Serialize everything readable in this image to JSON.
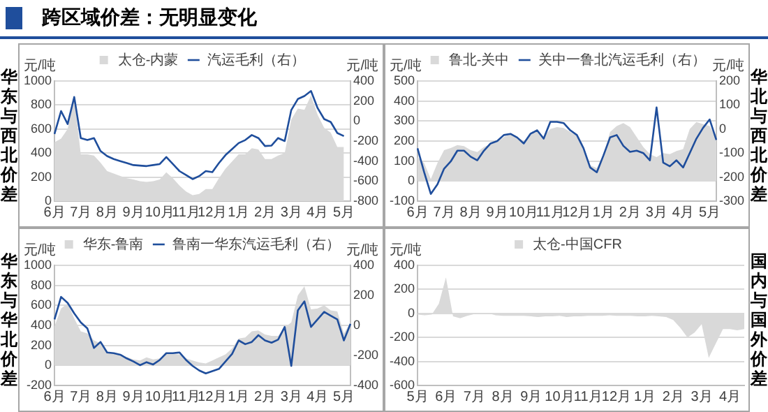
{
  "chart_data": [
    {
      "type": "line",
      "title": "华东与西北价差",
      "annotations": [
        "跨区域价差：无明显变化"
      ],
      "ylabel": "元/吨",
      "y2label": "元/吨",
      "legend": "top",
      "grid": "y",
      "categories": [
        "6月",
        null,
        null,
        null,
        "7月",
        null,
        null,
        null,
        "8月",
        null,
        null,
        null,
        "9月",
        null,
        null,
        null,
        "10月",
        null,
        null,
        null,
        "11月",
        null,
        null,
        null,
        "12月",
        null,
        null,
        null,
        "1月",
        null,
        null,
        null,
        "2月",
        null,
        null,
        null,
        "3月",
        null,
        null,
        null,
        "4月",
        null,
        null,
        null,
        "5月",
        null
      ],
      "ylim": [
        0,
        1000
      ],
      "yticks": [
        0,
        200,
        400,
        600,
        800,
        1000
      ],
      "y2lim": [
        -800,
        400
      ],
      "y2ticks": [
        -800,
        -600,
        -400,
        -200,
        0,
        200,
        400
      ],
      "series": [
        {
          "name": "太仓-内蒙",
          "type": "area",
          "color": "#d9d9d9",
          "values": [
            490,
            520,
            600,
            860,
            390,
            390,
            380,
            320,
            250,
            230,
            210,
            190,
            180,
            165,
            160,
            165,
            180,
            240,
            190,
            130,
            80,
            50,
            60,
            100,
            100,
            190,
            270,
            330,
            390,
            390,
            440,
            430,
            350,
            350,
            380,
            400,
            680,
            770,
            760,
            880,
            720,
            610,
            570,
            450,
            450,
            null
          ]
        },
        {
          "name": "汽运毛利（右）",
          "axis": "y2",
          "color": "#1f4e9c",
          "values": [
            -130,
            100,
            -30,
            240,
            -170,
            -190,
            -170,
            -300,
            -350,
            -380,
            -400,
            -420,
            -440,
            -445,
            -450,
            -440,
            -430,
            -360,
            -430,
            -500,
            -540,
            -580,
            -550,
            -500,
            -510,
            -420,
            -340,
            -280,
            -220,
            -190,
            -140,
            -170,
            -250,
            -245,
            -170,
            -200,
            110,
            220,
            250,
            300,
            130,
            20,
            -10,
            -120,
            -150,
            null
          ]
        }
      ]
    },
    {
      "type": "line",
      "title": "华北与西北价差",
      "ylabel": "元/吨",
      "y2label": "元/吨",
      "legend": "top",
      "grid": "y",
      "categories": [
        "6月",
        null,
        null,
        null,
        "7月",
        null,
        null,
        null,
        "8月",
        null,
        null,
        null,
        "9月",
        null,
        null,
        null,
        "10月",
        null,
        null,
        null,
        "11月",
        null,
        null,
        null,
        "12月",
        null,
        null,
        null,
        "1月",
        null,
        null,
        null,
        "2月",
        null,
        null,
        null,
        "3月",
        null,
        null,
        null,
        "4月",
        null,
        null,
        null,
        "5月",
        null
      ],
      "ylim": [
        -100,
        500
      ],
      "yticks": [
        -100,
        0,
        100,
        200,
        300,
        400,
        500
      ],
      "y2lim": [
        -300,
        200
      ],
      "y2ticks": [
        -300,
        -200,
        -100,
        0,
        100,
        200
      ],
      "series": [
        {
          "name": "鲁北-关中",
          "type": "area",
          "color": "#d9d9d9",
          "values": [
            120,
            90,
            10,
            90,
            155,
            165,
            180,
            175,
            155,
            145,
            170,
            185,
            195,
            220,
            235,
            220,
            200,
            230,
            260,
            220,
            260,
            270,
            265,
            245,
            225,
            150,
            80,
            65,
            130,
            245,
            275,
            290,
            270,
            220,
            170,
            135,
            120,
            140,
            135,
            150,
            160,
            260,
            295,
            285,
            275,
            215
          ]
        },
        {
          "name": "关中一鲁北汽运毛利（右）",
          "axis": "y2",
          "color": "#1f4e9c",
          "values": [
            -80,
            -180,
            -270,
            -230,
            -165,
            -135,
            -90,
            -90,
            -115,
            -130,
            -90,
            -60,
            -50,
            -25,
            -20,
            -35,
            -60,
            -20,
            -5,
            -40,
            30,
            30,
            25,
            -5,
            -25,
            -80,
            -160,
            -180,
            -110,
            -35,
            -25,
            -70,
            -95,
            -90,
            -100,
            -130,
            90,
            -140,
            -155,
            -130,
            -160,
            -100,
            -40,
            5,
            40,
            -45
          ]
        }
      ]
    },
    {
      "type": "line",
      "title": "华东与华北价差",
      "ylabel": "元/吨",
      "y2label": "元/吨",
      "legend": "top",
      "grid": "y",
      "categories": [
        "6月",
        null,
        null,
        null,
        "7月",
        null,
        null,
        null,
        "8月",
        null,
        null,
        null,
        "9月",
        null,
        null,
        null,
        "10月",
        null,
        null,
        null,
        "11月",
        null,
        null,
        null,
        "12月",
        null,
        null,
        null,
        "1月",
        null,
        null,
        null,
        "2月",
        null,
        null,
        null,
        "3月",
        null,
        null,
        null,
        "4月",
        null,
        null,
        null,
        "5月",
        null
      ],
      "ylim": [
        -200,
        1000
      ],
      "yticks": [
        -200,
        0,
        200,
        400,
        600,
        800,
        1000
      ],
      "y2lim": [
        -400,
        400
      ],
      "y2ticks": [
        -400,
        -200,
        0,
        200,
        400
      ],
      "series": [
        {
          "name": "华东-鲁南",
          "type": "area",
          "color": "#d9d9d9",
          "values": [
            390,
            570,
            620,
            470,
            340,
            320,
            250,
            220,
            130,
            120,
            105,
            85,
            60,
            50,
            80,
            60,
            70,
            115,
            115,
            110,
            70,
            50,
            30,
            20,
            50,
            80,
            110,
            170,
            270,
            280,
            340,
            350,
            310,
            295,
            295,
            380,
            430,
            700,
            790,
            560,
            570,
            600,
            550,
            540,
            320,
            430
          ]
        },
        {
          "name": "鲁南一华东汽运毛利（右）",
          "axis": "y2",
          "color": "#1f4e9c",
          "values": [
            40,
            190,
            150,
            80,
            20,
            -20,
            -150,
            -110,
            -180,
            -185,
            -195,
            -220,
            -240,
            -265,
            -245,
            -260,
            -230,
            -185,
            -185,
            -180,
            -230,
            -270,
            -300,
            -320,
            -305,
            -290,
            -240,
            -190,
            -100,
            -125,
            -110,
            -65,
            -100,
            -115,
            -95,
            -10,
            -270,
            100,
            160,
            -10,
            40,
            90,
            65,
            40,
            -100,
            10
          ]
        }
      ]
    },
    {
      "type": "area",
      "title": "国内与国外价差",
      "ylabel": "元/吨",
      "legend": "top",
      "grid": "y",
      "categories": [
        "5月",
        null,
        null,
        null,
        "6月",
        null,
        null,
        null,
        "7月",
        null,
        null,
        null,
        "8月",
        null,
        null,
        null,
        "9月",
        null,
        null,
        null,
        "10月",
        null,
        null,
        null,
        "11月",
        null,
        null,
        null,
        "12月",
        null,
        null,
        null,
        "1月",
        null,
        null,
        null,
        "2月",
        null,
        null,
        null,
        "3月",
        null,
        null,
        null,
        "4月",
        null,
        null
      ],
      "ylim": [
        -600,
        400
      ],
      "yticks": [
        -600,
        -400,
        -200,
        0,
        200,
        400
      ],
      "series": [
        {
          "name": "太仓-中国CFR",
          "color": "#d9d9d9",
          "values": [
            -10,
            -15,
            -10,
            80,
            300,
            -25,
            -40,
            -20,
            -5,
            5,
            0,
            -15,
            -20,
            -20,
            -20,
            -20,
            -25,
            -30,
            -25,
            -25,
            -20,
            -30,
            -25,
            -25,
            -20,
            -20,
            -20,
            -15,
            -20,
            -20,
            -20,
            -25,
            -25,
            -20,
            -25,
            -30,
            -55,
            -120,
            -200,
            -160,
            -90,
            -370,
            -250,
            -130,
            -130,
            -140,
            -130
          ]
        }
      ]
    }
  ]
}
